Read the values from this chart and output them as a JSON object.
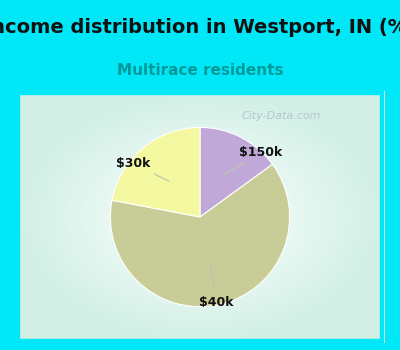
{
  "title": "Income distribution in Westport, IN (%)",
  "subtitle": "Multirace residents",
  "slices": [
    {
      "label": "$150k",
      "value": 15,
      "color": "#c0a8d8"
    },
    {
      "label": "$40k",
      "value": 63,
      "color": "#c8cc96"
    },
    {
      "label": "$30k",
      "value": 22,
      "color": "#f4f8a0"
    }
  ],
  "startangle": 90,
  "title_fontsize": 14,
  "subtitle_fontsize": 11,
  "subtitle_color": "#009999",
  "title_color": "#111111",
  "cyan_color": "#00e8f8",
  "chart_border_color": "#00e8f8",
  "watermark_text": "City-Data.com",
  "watermark_color": "#b0c0c8",
  "label_color": "#111111",
  "label_fontsize": 9,
  "arrow_color": "#b8c8b0"
}
